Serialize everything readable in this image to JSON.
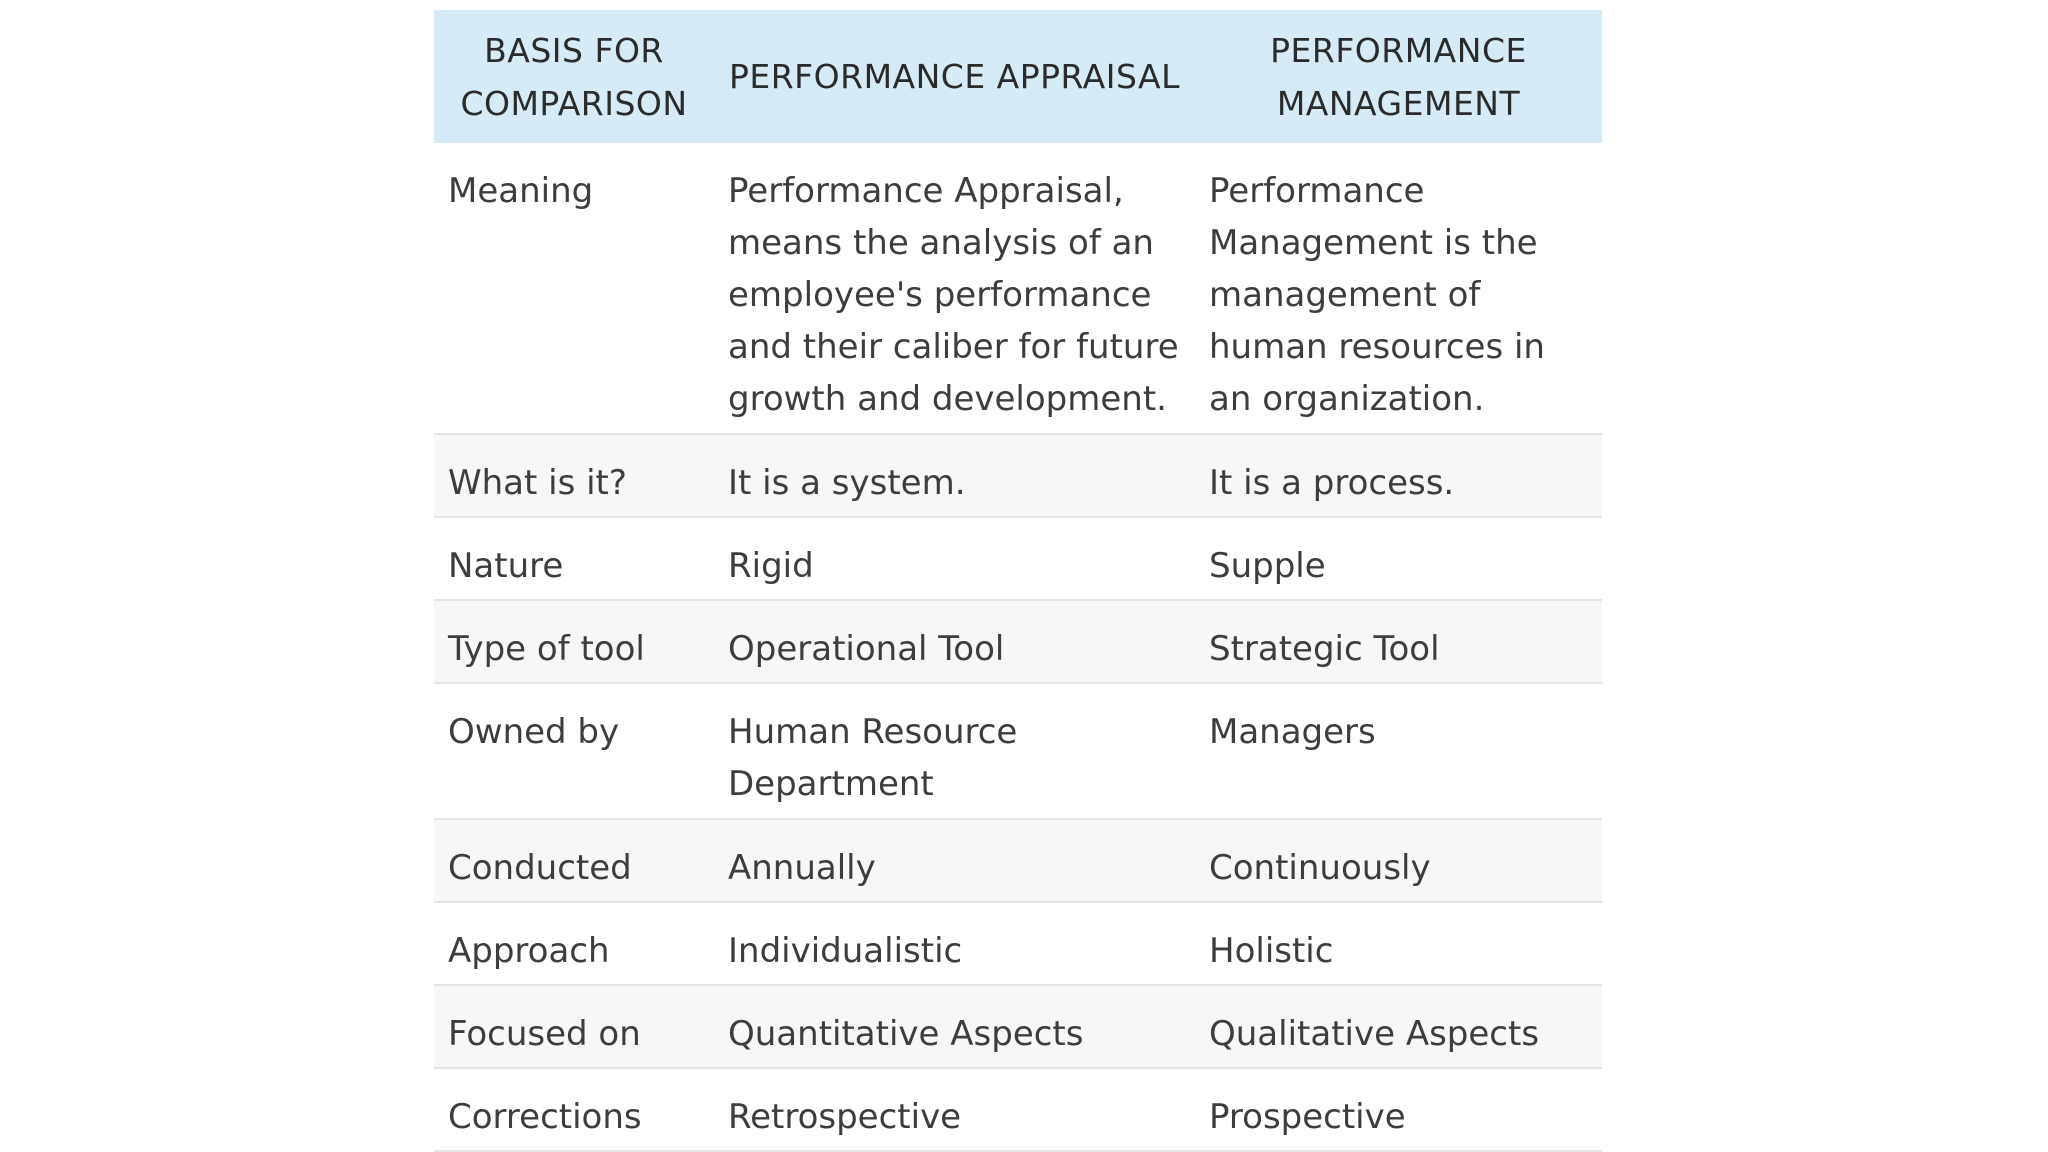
{
  "table": {
    "headers": [
      "BASIS FOR COMPARISON",
      "PERFORMANCE APPRAISAL",
      "PERFORMANCE MANAGEMENT"
    ],
    "rows": [
      {
        "basis": "Meaning",
        "appraisal": "Performance Appraisal, means the analysis of an employee's performance and their caliber for future growth and development.",
        "management": "Performance Management is the management of human resources in an organization."
      },
      {
        "basis": "What is it?",
        "appraisal": "It is a system.",
        "management": "It is a process."
      },
      {
        "basis": "Nature",
        "appraisal": "Rigid",
        "management": "Supple"
      },
      {
        "basis": "Type of tool",
        "appraisal": "Operational Tool",
        "management": "Strategic Tool"
      },
      {
        "basis": "Owned by",
        "appraisal": "Human Resource Department",
        "management": "Managers"
      },
      {
        "basis": "Conducted",
        "appraisal": "Annually",
        "management": "Continuously"
      },
      {
        "basis": "Approach",
        "appraisal": "Individualistic",
        "management": "Holistic"
      },
      {
        "basis": "Focused on",
        "appraisal": "Quantitative Aspects",
        "management": "Qualitative Aspects"
      },
      {
        "basis": "Corrections",
        "appraisal": "Retrospective",
        "management": "Prospective"
      }
    ]
  },
  "colors": {
    "header_bg": "#d7ebf6",
    "row_shade": "#f7f7f8",
    "row_border": "#e4e4e4",
    "text": "#3d3d3d"
  }
}
